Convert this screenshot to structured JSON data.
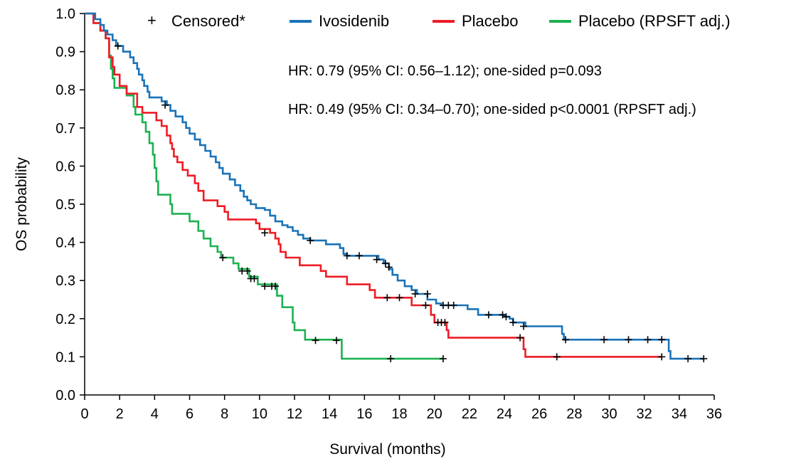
{
  "chart_data": {
    "type": "line",
    "subtype": "kaplan-meier",
    "xlabel": "Survival (months)",
    "ylabel": "OS probability",
    "xlim": [
      0,
      36
    ],
    "ylim": [
      0.0,
      1.0
    ],
    "xticks": [
      0,
      2,
      4,
      6,
      8,
      10,
      12,
      14,
      16,
      18,
      20,
      22,
      24,
      26,
      28,
      30,
      32,
      34,
      36
    ],
    "yticks": [
      "0.0",
      "0.1",
      "0.2",
      "0.3",
      "0.4",
      "0.5",
      "0.6",
      "0.7",
      "0.8",
      "0.9",
      "1.0"
    ],
    "grid": false,
    "legend": {
      "placement": "top",
      "censored_label": "Censored*",
      "censored_symbol": "+"
    },
    "annotations": [
      "HR: 0.79 (95% CI: 0.56–1.12); one-sided p=0.093",
      "HR: 0.49 (95% CI: 0.34–0.70); one-sided p<0.0001 (RPSFT adj.)"
    ],
    "series": [
      {
        "name": "Ivosidenib",
        "color": "#1a73b8",
        "steps": [
          [
            0,
            1.0
          ],
          [
            0.6,
            0.985
          ],
          [
            0.9,
            0.97
          ],
          [
            1.1,
            0.955
          ],
          [
            1.3,
            0.945
          ],
          [
            1.6,
            0.93
          ],
          [
            1.8,
            0.915
          ],
          [
            2.2,
            0.9
          ],
          [
            2.6,
            0.885
          ],
          [
            2.8,
            0.87
          ],
          [
            3.0,
            0.855
          ],
          [
            3.1,
            0.84
          ],
          [
            3.3,
            0.825
          ],
          [
            3.4,
            0.81
          ],
          [
            3.6,
            0.795
          ],
          [
            3.7,
            0.78
          ],
          [
            4.4,
            0.77
          ],
          [
            4.7,
            0.76
          ],
          [
            4.9,
            0.745
          ],
          [
            5.2,
            0.73
          ],
          [
            5.6,
            0.715
          ],
          [
            5.8,
            0.7
          ],
          [
            6.0,
            0.685
          ],
          [
            6.3,
            0.67
          ],
          [
            6.6,
            0.655
          ],
          [
            6.9,
            0.64
          ],
          [
            7.2,
            0.625
          ],
          [
            7.5,
            0.61
          ],
          [
            7.7,
            0.595
          ],
          [
            7.9,
            0.58
          ],
          [
            8.3,
            0.565
          ],
          [
            8.6,
            0.55
          ],
          [
            8.9,
            0.535
          ],
          [
            9.1,
            0.52
          ],
          [
            9.3,
            0.51
          ],
          [
            9.5,
            0.5
          ],
          [
            9.8,
            0.49
          ],
          [
            10.3,
            0.485
          ],
          [
            10.6,
            0.47
          ],
          [
            10.9,
            0.455
          ],
          [
            11.3,
            0.445
          ],
          [
            11.6,
            0.44
          ],
          [
            11.9,
            0.43
          ],
          [
            12.2,
            0.42
          ],
          [
            12.5,
            0.41
          ],
          [
            12.9,
            0.405
          ],
          [
            13.8,
            0.395
          ],
          [
            14.6,
            0.385
          ],
          [
            14.8,
            0.37
          ],
          [
            15.0,
            0.365
          ],
          [
            16.8,
            0.355
          ],
          [
            17.1,
            0.345
          ],
          [
            17.4,
            0.33
          ],
          [
            17.6,
            0.315
          ],
          [
            17.9,
            0.3
          ],
          [
            18.3,
            0.285
          ],
          [
            18.7,
            0.275
          ],
          [
            19.0,
            0.265
          ],
          [
            19.6,
            0.25
          ],
          [
            20.1,
            0.24
          ],
          [
            20.4,
            0.235
          ],
          [
            21.9,
            0.225
          ],
          [
            22.5,
            0.21
          ],
          [
            24.0,
            0.205
          ],
          [
            24.3,
            0.2
          ],
          [
            24.5,
            0.19
          ],
          [
            25.2,
            0.18
          ],
          [
            27.3,
            0.16
          ],
          [
            27.4,
            0.145
          ],
          [
            33.4,
            0.115
          ],
          [
            33.5,
            0.095
          ],
          [
            35.4,
            0.095
          ]
        ],
        "censored": [
          [
            1.9,
            0.915
          ],
          [
            4.6,
            0.76
          ],
          [
            12.9,
            0.405
          ],
          [
            15.0,
            0.365
          ],
          [
            15.7,
            0.365
          ],
          [
            16.7,
            0.355
          ],
          [
            17.2,
            0.345
          ],
          [
            17.4,
            0.335
          ],
          [
            18.9,
            0.265
          ],
          [
            19.6,
            0.265
          ],
          [
            20.5,
            0.235
          ],
          [
            20.8,
            0.235
          ],
          [
            21.1,
            0.235
          ],
          [
            23.1,
            0.21
          ],
          [
            23.9,
            0.21
          ],
          [
            24.1,
            0.205
          ],
          [
            24.5,
            0.19
          ],
          [
            25.1,
            0.18
          ],
          [
            27.5,
            0.145
          ],
          [
            29.7,
            0.145
          ],
          [
            31.1,
            0.145
          ],
          [
            32.2,
            0.145
          ],
          [
            33.0,
            0.145
          ],
          [
            34.5,
            0.095
          ],
          [
            35.4,
            0.095
          ]
        ]
      },
      {
        "name": "Placebo",
        "color": "#ee1c25",
        "steps": [
          [
            0,
            1.0
          ],
          [
            0.5,
            0.975
          ],
          [
            0.9,
            0.955
          ],
          [
            1.2,
            0.935
          ],
          [
            1.4,
            0.885
          ],
          [
            1.6,
            0.86
          ],
          [
            1.7,
            0.84
          ],
          [
            2.0,
            0.81
          ],
          [
            2.4,
            0.79
          ],
          [
            3.0,
            0.755
          ],
          [
            3.3,
            0.74
          ],
          [
            4.1,
            0.72
          ],
          [
            4.4,
            0.705
          ],
          [
            4.7,
            0.68
          ],
          [
            4.9,
            0.66
          ],
          [
            5.0,
            0.645
          ],
          [
            5.1,
            0.625
          ],
          [
            5.3,
            0.61
          ],
          [
            5.6,
            0.59
          ],
          [
            5.9,
            0.575
          ],
          [
            6.3,
            0.555
          ],
          [
            6.5,
            0.535
          ],
          [
            6.8,
            0.51
          ],
          [
            7.6,
            0.495
          ],
          [
            8.0,
            0.48
          ],
          [
            8.2,
            0.46
          ],
          [
            9.8,
            0.45
          ],
          [
            10.0,
            0.435
          ],
          [
            10.6,
            0.425
          ],
          [
            10.9,
            0.41
          ],
          [
            11.1,
            0.395
          ],
          [
            11.2,
            0.375
          ],
          [
            11.5,
            0.36
          ],
          [
            12.3,
            0.34
          ],
          [
            13.5,
            0.325
          ],
          [
            13.8,
            0.31
          ],
          [
            15.0,
            0.29
          ],
          [
            16.3,
            0.275
          ],
          [
            16.6,
            0.255
          ],
          [
            18.7,
            0.235
          ],
          [
            19.8,
            0.21
          ],
          [
            20.0,
            0.19
          ],
          [
            20.7,
            0.17
          ],
          [
            20.8,
            0.15
          ],
          [
            25.1,
            0.12
          ],
          [
            25.2,
            0.1
          ],
          [
            33.0,
            0.1
          ]
        ],
        "censored": [
          [
            10.3,
            0.425
          ],
          [
            17.3,
            0.255
          ],
          [
            18.0,
            0.255
          ],
          [
            19.5,
            0.235
          ],
          [
            20.2,
            0.19
          ],
          [
            20.4,
            0.19
          ],
          [
            20.6,
            0.19
          ],
          [
            24.9,
            0.15
          ],
          [
            27.0,
            0.1
          ],
          [
            33.0,
            0.1
          ]
        ]
      },
      {
        "name": "Placebo (RPSFT adj.)",
        "color": "#1db151",
        "steps": [
          [
            0,
            1.0
          ],
          [
            0.5,
            0.975
          ],
          [
            0.9,
            0.955
          ],
          [
            1.2,
            0.935
          ],
          [
            1.4,
            0.89
          ],
          [
            1.5,
            0.855
          ],
          [
            1.6,
            0.83
          ],
          [
            1.7,
            0.805
          ],
          [
            2.4,
            0.785
          ],
          [
            2.8,
            0.755
          ],
          [
            2.9,
            0.735
          ],
          [
            3.3,
            0.715
          ],
          [
            3.5,
            0.69
          ],
          [
            3.7,
            0.66
          ],
          [
            3.9,
            0.63
          ],
          [
            4.0,
            0.595
          ],
          [
            4.1,
            0.56
          ],
          [
            4.2,
            0.525
          ],
          [
            4.9,
            0.5
          ],
          [
            5.0,
            0.475
          ],
          [
            6.0,
            0.455
          ],
          [
            6.5,
            0.43
          ],
          [
            6.8,
            0.41
          ],
          [
            7.2,
            0.39
          ],
          [
            7.6,
            0.375
          ],
          [
            7.8,
            0.36
          ],
          [
            8.5,
            0.345
          ],
          [
            8.8,
            0.33
          ],
          [
            9.4,
            0.31
          ],
          [
            9.9,
            0.29
          ],
          [
            11.0,
            0.26
          ],
          [
            11.3,
            0.23
          ],
          [
            11.9,
            0.19
          ],
          [
            12.0,
            0.17
          ],
          [
            12.6,
            0.145
          ],
          [
            14.7,
            0.095
          ],
          [
            20.5,
            0.095
          ]
        ],
        "censored": [
          [
            7.9,
            0.36
          ],
          [
            9.0,
            0.325
          ],
          [
            9.3,
            0.325
          ],
          [
            9.5,
            0.305
          ],
          [
            9.7,
            0.305
          ],
          [
            10.3,
            0.285
          ],
          [
            10.7,
            0.285
          ],
          [
            10.9,
            0.285
          ],
          [
            13.2,
            0.143
          ],
          [
            14.4,
            0.143
          ],
          [
            17.5,
            0.095
          ],
          [
            20.5,
            0.095
          ]
        ]
      }
    ]
  }
}
